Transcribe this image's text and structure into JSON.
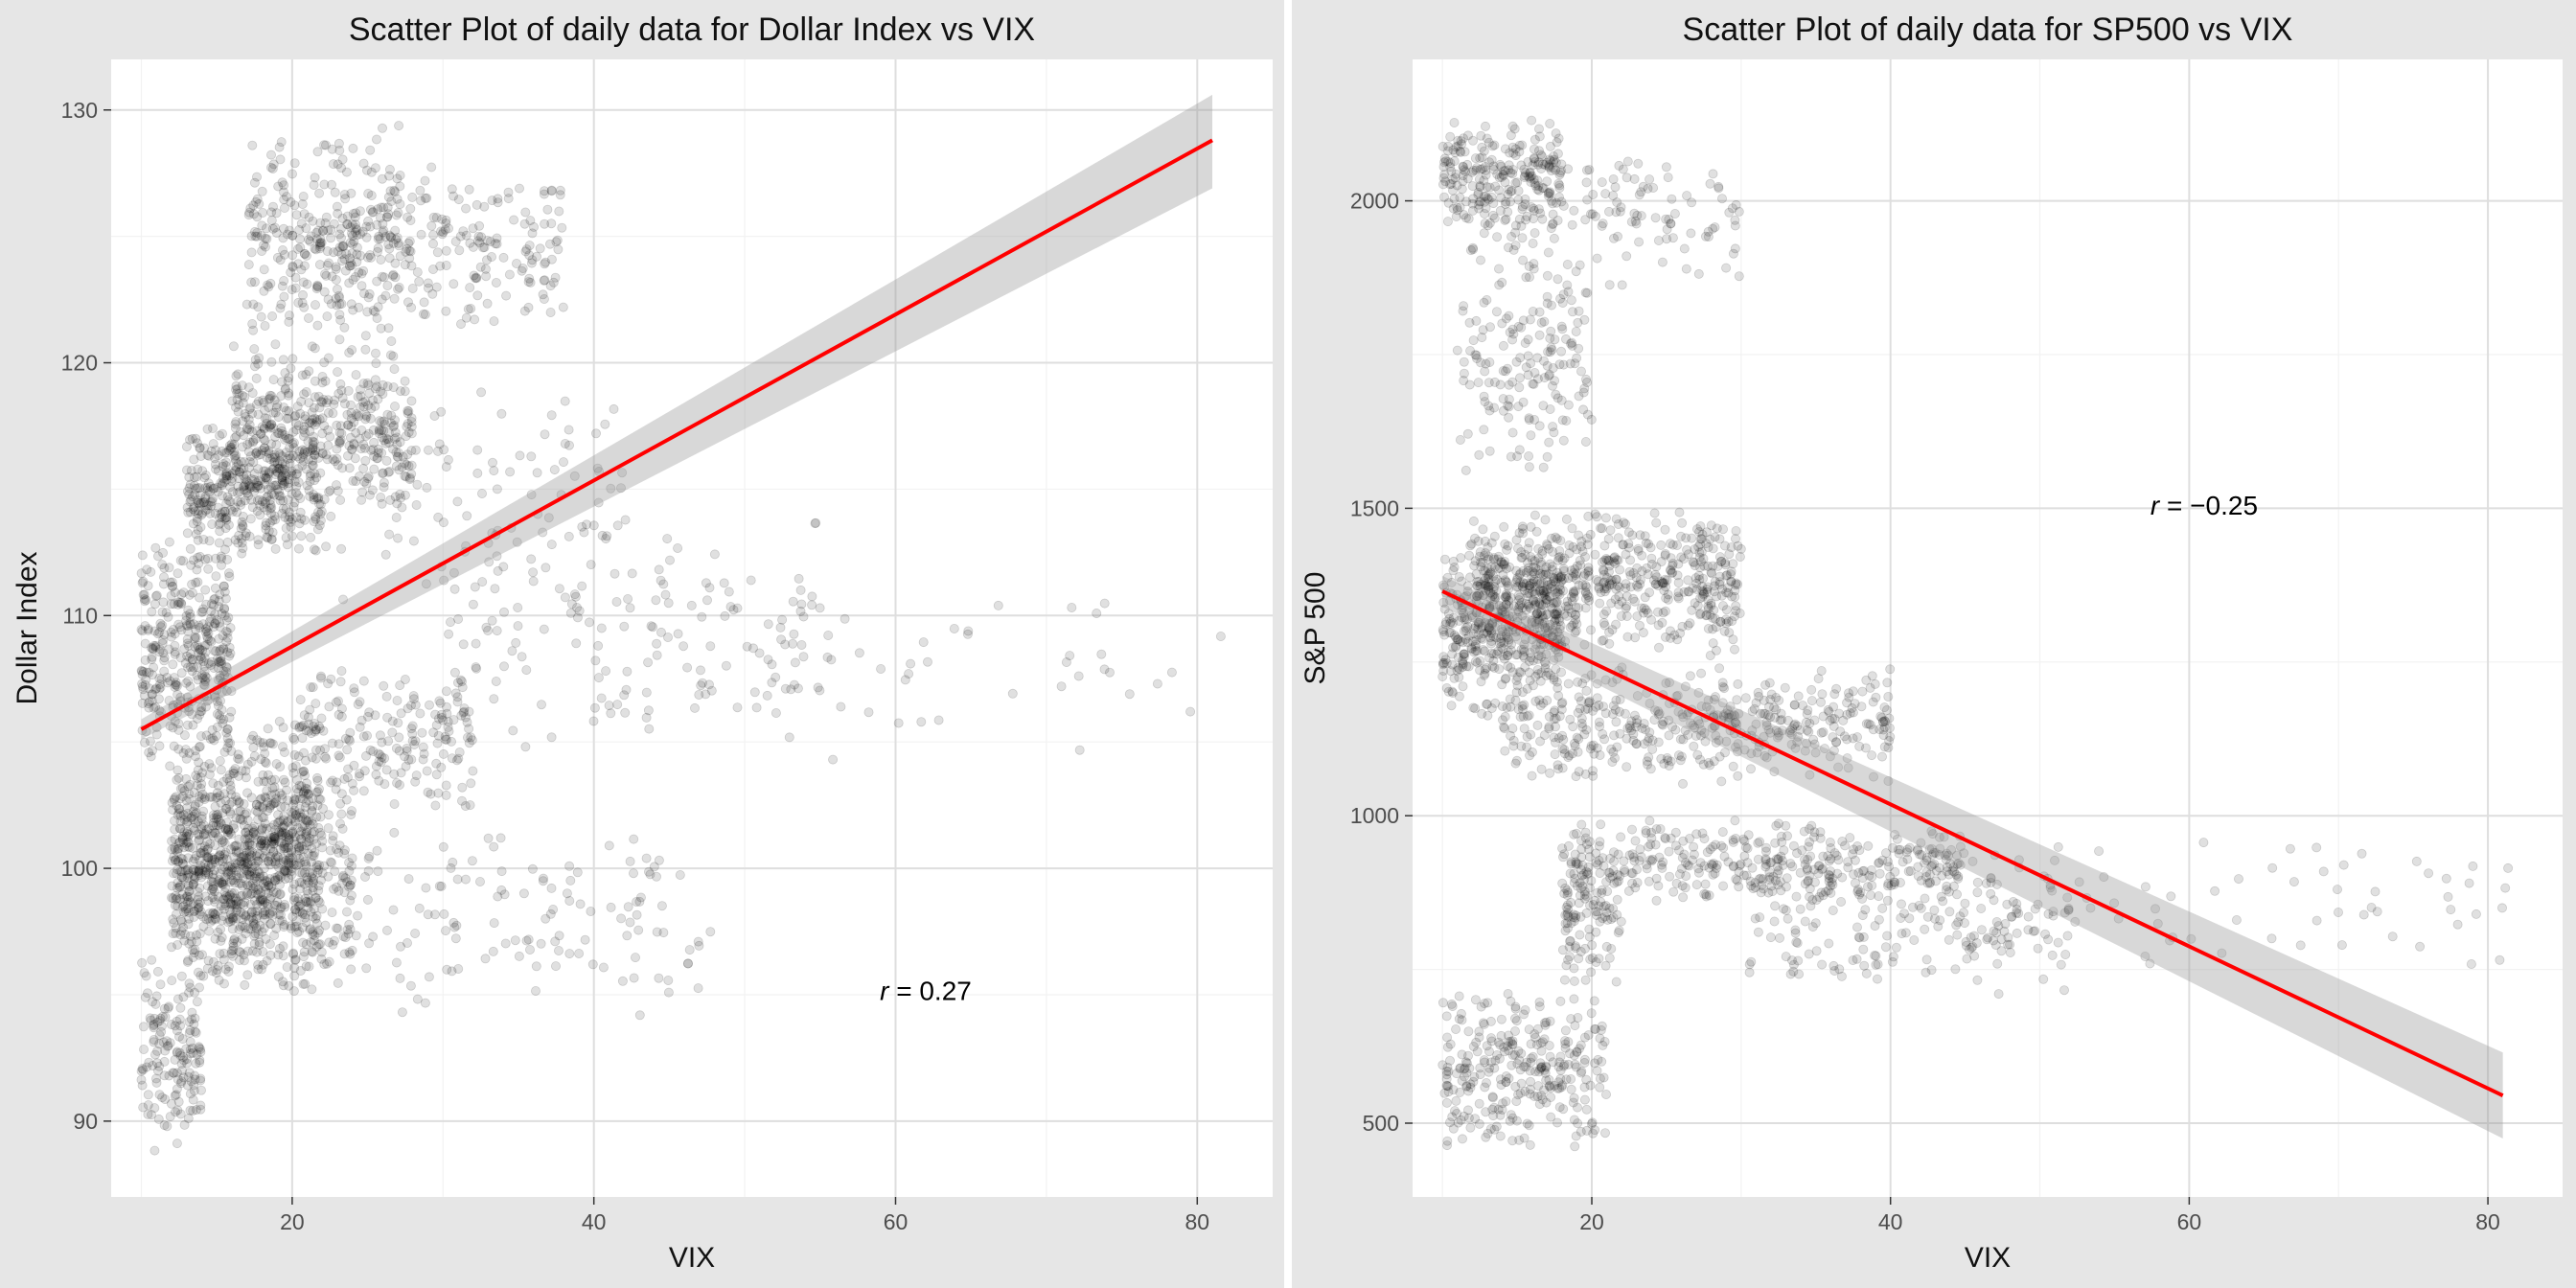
{
  "chart_data": [
    {
      "type": "scatter",
      "title": "Scatter Plot of daily data for Dollar Index vs VIX",
      "xlabel": "VIX",
      "ylabel": "Dollar Index",
      "xlim": [
        8,
        85
      ],
      "ylim": [
        87,
        132
      ],
      "x_ticks": [
        20,
        40,
        60,
        80
      ],
      "y_ticks": [
        90,
        100,
        110,
        120,
        130
      ],
      "grid": true,
      "point_color": "#000000",
      "point_alpha": 0.12,
      "clusters": [
        {
          "x": [
            10,
            16
          ],
          "y": [
            104,
            113
          ],
          "n": 380
        },
        {
          "x": [
            10,
            14
          ],
          "y": [
            88.5,
            97
          ],
          "n": 160
        },
        {
          "x": [
            12,
            22
          ],
          "y": [
            95,
            106
          ],
          "n": 800
        },
        {
          "x": [
            12,
            24
          ],
          "y": [
            95,
            104
          ],
          "n": 400
        },
        {
          "x": [
            13,
            22
          ],
          "y": [
            112,
            118
          ],
          "n": 420
        },
        {
          "x": [
            16,
            28
          ],
          "y": [
            114,
            121
          ],
          "n": 380
        },
        {
          "x": [
            17,
            28
          ],
          "y": [
            120,
            130
          ],
          "n": 260
        },
        {
          "x": [
            20,
            38
          ],
          "y": [
            121,
            128
          ],
          "n": 240
        },
        {
          "x": [
            20,
            32
          ],
          "y": [
            102,
            108
          ],
          "n": 200
        },
        {
          "x": [
            22,
            42
          ],
          "y": [
            110,
            120
          ],
          "n": 100
        },
        {
          "x": [
            22,
            48
          ],
          "y": [
            94,
            102
          ],
          "n": 140
        },
        {
          "x": [
            30,
            55
          ],
          "y": [
            104,
            115
          ],
          "n": 150
        },
        {
          "x": [
            40,
            82
          ],
          "y": [
            104,
            112
          ],
          "n": 60
        }
      ],
      "series": [
        {
          "name": "",
          "type": "regression",
          "x": [
            10,
            81
          ],
          "y": [
            105.5,
            128.8
          ],
          "color": "#ff0000",
          "ci": [
            [
              105.1,
              105.9
            ],
            [
              126.9,
              130.6
            ]
          ]
        }
      ],
      "annotation": {
        "prefix": "r",
        "eq": " = ",
        "value": "0.27",
        "at": [
          62,
          94.8
        ]
      }
    },
    {
      "type": "scatter",
      "title": "Scatter Plot of daily data for SP500 vs VIX",
      "xlabel": "VIX",
      "ylabel": "S&P 500",
      "xlim": [
        8,
        85
      ],
      "ylim": [
        380,
        2230
      ],
      "x_ticks": [
        20,
        40,
        60,
        80
      ],
      "y_ticks": [
        500,
        1000,
        1500,
        2000
      ],
      "grid": true,
      "point_color": "#000000",
      "point_alpha": 0.12,
      "clusters": [
        {
          "x": [
            10,
            18
          ],
          "y": [
            1950,
            2140
          ],
          "n": 230
        },
        {
          "x": [
            12,
            30
          ],
          "y": [
            1850,
            2090
          ],
          "n": 140
        },
        {
          "x": [
            11,
            20
          ],
          "y": [
            1550,
            1950
          ],
          "n": 170
        },
        {
          "x": [
            12,
            30
          ],
          "y": [
            1250,
            1500
          ],
          "n": 620
        },
        {
          "x": [
            10,
            18
          ],
          "y": [
            1150,
            1460
          ],
          "n": 420
        },
        {
          "x": [
            14,
            40
          ],
          "y": [
            1050,
            1250
          ],
          "n": 450
        },
        {
          "x": [
            18,
            45
          ],
          "y": [
            850,
            1000
          ],
          "n": 380
        },
        {
          "x": [
            30,
            52
          ],
          "y": [
            700,
            950
          ],
          "n": 200
        },
        {
          "x": [
            18,
            22
          ],
          "y": [
            700,
            950
          ],
          "n": 100
        },
        {
          "x": [
            10,
            21
          ],
          "y": [
            450,
            720
          ],
          "n": 300
        },
        {
          "x": [
            44,
            82
          ],
          "y": [
            750,
            1000
          ],
          "n": 70
        }
      ],
      "series": [
        {
          "name": "",
          "type": "regression",
          "x": [
            10,
            81
          ],
          "y": [
            1365,
            545
          ],
          "color": "#ff0000",
          "ci": [
            [
              1390,
              1340
            ],
            [
              615,
              475
            ]
          ]
        }
      ],
      "annotation": {
        "prefix": "r",
        "eq": " = −",
        "value": "0.25",
        "at": [
          61,
          1490
        ]
      }
    }
  ]
}
